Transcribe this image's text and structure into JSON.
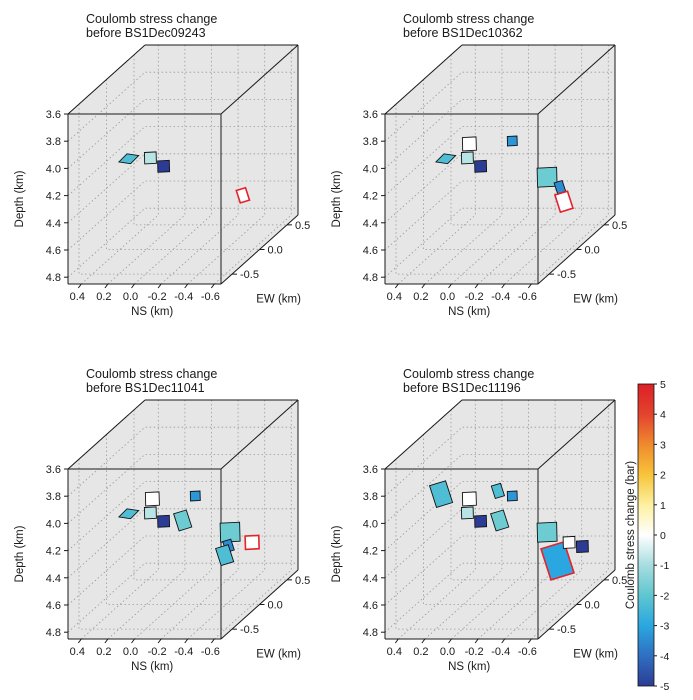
{
  "figure": {
    "colorbar": {
      "label": "Coulomb stress change (bar)",
      "ticks": [
        5,
        4,
        3,
        2,
        1,
        0,
        -1,
        -2,
        -3,
        -4,
        -5
      ],
      "range": [
        -5,
        5
      ],
      "colors": [
        "#2c3c94",
        "#2f6fc2",
        "#2aa7e0",
        "#5fc6cf",
        "#a6dde0",
        "#ffffff",
        "#fdf0a0",
        "#f7c43a",
        "#ef8a2e",
        "#e3432d",
        "#dc2026"
      ]
    }
  },
  "chart_data": [
    {
      "type": "scatter",
      "title": "Coulomb stress change\nbefore BS1Dec09243",
      "xlabel": "NS (km)",
      "ylabel": "EW (km)",
      "zlabel": "Depth (km)",
      "ns_ticks": [
        "0.4",
        "0.2",
        "0.0",
        "-0.2",
        "-0.4",
        "-0.6"
      ],
      "ew_ticks": [
        "0.5",
        "0.0",
        "-0.5"
      ],
      "depth_ticks": [
        "3.6",
        "3.8",
        "4.0",
        "4.2",
        "4.4",
        "4.6",
        "4.8"
      ],
      "xlim": [
        0.5,
        -0.65
      ],
      "ylim": [
        -0.7,
        0.7
      ],
      "zlim": [
        3.6,
        4.85
      ],
      "grid": true,
      "patches": [
        {
          "ns": 0.25,
          "ew": 0.2,
          "depth": 4.11,
          "stress": -2.3,
          "outline": "black",
          "shape": "rhomb-wide",
          "size": 9
        },
        {
          "ns": 0.22,
          "ew": -0.12,
          "depth": 4.22,
          "stress": -0.8,
          "outline": "black",
          "shape": "square",
          "size": 6
        },
        {
          "ns": 0.05,
          "ew": 0.05,
          "depth": 4.22,
          "stress": -5.0,
          "outline": "black",
          "shape": "square",
          "size": 6
        },
        {
          "ns": -0.4,
          "ew": -0.3,
          "depth": 4.56,
          "stress": 0.0,
          "outline": "red",
          "shape": "rhomb-tall",
          "size": 8
        }
      ]
    },
    {
      "type": "scatter",
      "title": "Coulomb stress change\nbefore BS1Dec10362",
      "xlabel": "NS (km)",
      "ylabel": "EW (km)",
      "zlabel": "Depth (km)",
      "ns_ticks": [
        "0.4",
        "0.2",
        "0.0",
        "-0.2",
        "-0.4",
        "-0.6"
      ],
      "ew_ticks": [
        "0.5",
        "0.0",
        "-0.5"
      ],
      "depth_ticks": [
        "3.6",
        "3.8",
        "4.0",
        "4.2",
        "4.4",
        "4.6",
        "4.8"
      ],
      "xlim": [
        0.5,
        -0.65
      ],
      "ylim": [
        -0.7,
        0.7
      ],
      "zlim": [
        3.6,
        4.85
      ],
      "grid": true,
      "patches": [
        {
          "ns": 0.25,
          "ew": 0.2,
          "depth": 4.11,
          "stress": -2.3,
          "outline": "black",
          "shape": "rhomb-wide",
          "size": 9
        },
        {
          "ns": 0.22,
          "ew": -0.12,
          "depth": 4.22,
          "stress": -0.8,
          "outline": "black",
          "shape": "square",
          "size": 6
        },
        {
          "ns": 0.05,
          "ew": 0.05,
          "depth": 4.22,
          "stress": -5.0,
          "outline": "black",
          "shape": "square",
          "size": 6
        },
        {
          "ns": 0.3,
          "ew": -0.35,
          "depth": 4.2,
          "stress": 0.0,
          "outline": "black",
          "shape": "square",
          "size": 7
        },
        {
          "ns": -0.25,
          "ew": 0.2,
          "depth": 3.98,
          "stress": -3.3,
          "outline": "black",
          "shape": "square",
          "size": 5
        },
        {
          "ns": -0.45,
          "ew": 0.05,
          "depth": 4.3,
          "stress": -1.8,
          "outline": "black",
          "shape": "square",
          "size": 10
        },
        {
          "ns": -0.4,
          "ew": -0.3,
          "depth": 4.5,
          "stress": -3.5,
          "outline": "black",
          "shape": "rhomb-tall",
          "size": 7
        },
        {
          "ns": -0.38,
          "ew": -0.42,
          "depth": 4.65,
          "stress": 0.0,
          "outline": "red",
          "shape": "rhomb-tall",
          "size": 11
        }
      ]
    },
    {
      "type": "scatter",
      "title": "Coulomb stress change\nbefore BS1Dec11041",
      "xlabel": "NS (km)",
      "ylabel": "EW (km)",
      "zlabel": "Depth (km)",
      "ns_ticks": [
        "0.4",
        "0.2",
        "0.0",
        "-0.2",
        "-0.4",
        "-0.6"
      ],
      "ew_ticks": [
        "0.5",
        "0.0",
        "-0.5"
      ],
      "depth_ticks": [
        "3.6",
        "3.8",
        "4.0",
        "4.2",
        "4.4",
        "4.6",
        "4.8"
      ],
      "xlim": [
        0.5,
        -0.65
      ],
      "ylim": [
        -0.7,
        0.7
      ],
      "zlim": [
        3.6,
        4.85
      ],
      "grid": true,
      "patches": [
        {
          "ns": 0.25,
          "ew": 0.2,
          "depth": 4.11,
          "stress": -2.3,
          "outline": "black",
          "shape": "rhomb-wide",
          "size": 9
        },
        {
          "ns": 0.22,
          "ew": -0.12,
          "depth": 4.22,
          "stress": -0.8,
          "outline": "black",
          "shape": "square",
          "size": 6
        },
        {
          "ns": 0.05,
          "ew": 0.05,
          "depth": 4.22,
          "stress": -5.0,
          "outline": "black",
          "shape": "square",
          "size": 6
        },
        {
          "ns": 0.3,
          "ew": -0.35,
          "depth": 4.2,
          "stress": 0.0,
          "outline": "black",
          "shape": "square",
          "size": 7
        },
        {
          "ns": -0.25,
          "ew": 0.2,
          "depth": 3.98,
          "stress": -3.3,
          "outline": "black",
          "shape": "square",
          "size": 5
        },
        {
          "ns": -0.45,
          "ew": 0.05,
          "depth": 4.3,
          "stress": -1.8,
          "outline": "black",
          "shape": "square",
          "size": 10
        },
        {
          "ns": -0.05,
          "ew": -0.05,
          "depth": 4.25,
          "stress": -1.8,
          "outline": "black",
          "shape": "rhomb-tall",
          "size": 11
        },
        {
          "ns": -0.3,
          "ew": -0.28,
          "depth": 4.52,
          "stress": -3.5,
          "outline": "black",
          "shape": "rhomb-tall",
          "size": 7
        },
        {
          "ns": -0.45,
          "ew": -0.35,
          "depth": 4.52,
          "stress": 0.0,
          "outline": "red",
          "shape": "square",
          "size": 7
        },
        {
          "ns": -0.2,
          "ew": -0.45,
          "depth": 4.65,
          "stress": -2.3,
          "outline": "black",
          "shape": "rhomb-tall",
          "size": 11
        }
      ]
    },
    {
      "type": "scatter",
      "title": "Coulomb stress change\nbefore BS1Dec11196",
      "xlabel": "NS (km)",
      "ylabel": "EW (km)",
      "zlabel": "Depth (km)",
      "ns_ticks": [
        "0.4",
        "0.2",
        "0.0",
        "-0.2",
        "-0.4",
        "-0.6"
      ],
      "ew_ticks": [
        "0.5",
        "0.0",
        "-0.5"
      ],
      "depth_ticks": [
        "3.6",
        "3.8",
        "4.0",
        "4.2",
        "4.4",
        "4.6",
        "4.8"
      ],
      "xlim": [
        0.5,
        -0.65
      ],
      "ylim": [
        -0.7,
        0.7
      ],
      "zlim": [
        3.6,
        4.85
      ],
      "grid": true,
      "patches": [
        {
          "ns": 0.35,
          "ew": 0.05,
          "depth": 4.02,
          "stress": -2.3,
          "outline": "black",
          "shape": "rhomb-tall",
          "size": 14
        },
        {
          "ns": -0.12,
          "ew": 0.15,
          "depth": 3.96,
          "stress": -2.3,
          "outline": "black",
          "shape": "rhomb-tall",
          "size": 8
        },
        {
          "ns": 0.3,
          "ew": -0.35,
          "depth": 4.2,
          "stress": 0.0,
          "outline": "black",
          "shape": "square",
          "size": 7
        },
        {
          "ns": 0.22,
          "ew": -0.12,
          "depth": 4.22,
          "stress": -0.8,
          "outline": "black",
          "shape": "square",
          "size": 6
        },
        {
          "ns": 0.05,
          "ew": 0.05,
          "depth": 4.22,
          "stress": -5.0,
          "outline": "black",
          "shape": "square",
          "size": 6
        },
        {
          "ns": -0.25,
          "ew": 0.2,
          "depth": 3.98,
          "stress": -3.3,
          "outline": "black",
          "shape": "square",
          "size": 5
        },
        {
          "ns": -0.45,
          "ew": 0.05,
          "depth": 4.3,
          "stress": -1.8,
          "outline": "black",
          "shape": "square",
          "size": 10
        },
        {
          "ns": -0.05,
          "ew": -0.05,
          "depth": 4.25,
          "stress": -1.8,
          "outline": "black",
          "shape": "rhomb-tall",
          "size": 11
        },
        {
          "ns": -0.4,
          "ew": -0.25,
          "depth": 4.62,
          "stress": -3.0,
          "outline": "red",
          "shape": "rhomb-tall",
          "size": 20
        },
        {
          "ns": -0.45,
          "ew": -0.35,
          "depth": 4.52,
          "stress": 0.0,
          "outline": "black",
          "shape": "square",
          "size": 6
        },
        {
          "ns": -0.55,
          "ew": -0.35,
          "depth": 4.55,
          "stress": -5.0,
          "outline": "black",
          "shape": "square",
          "size": 6
        }
      ]
    }
  ]
}
